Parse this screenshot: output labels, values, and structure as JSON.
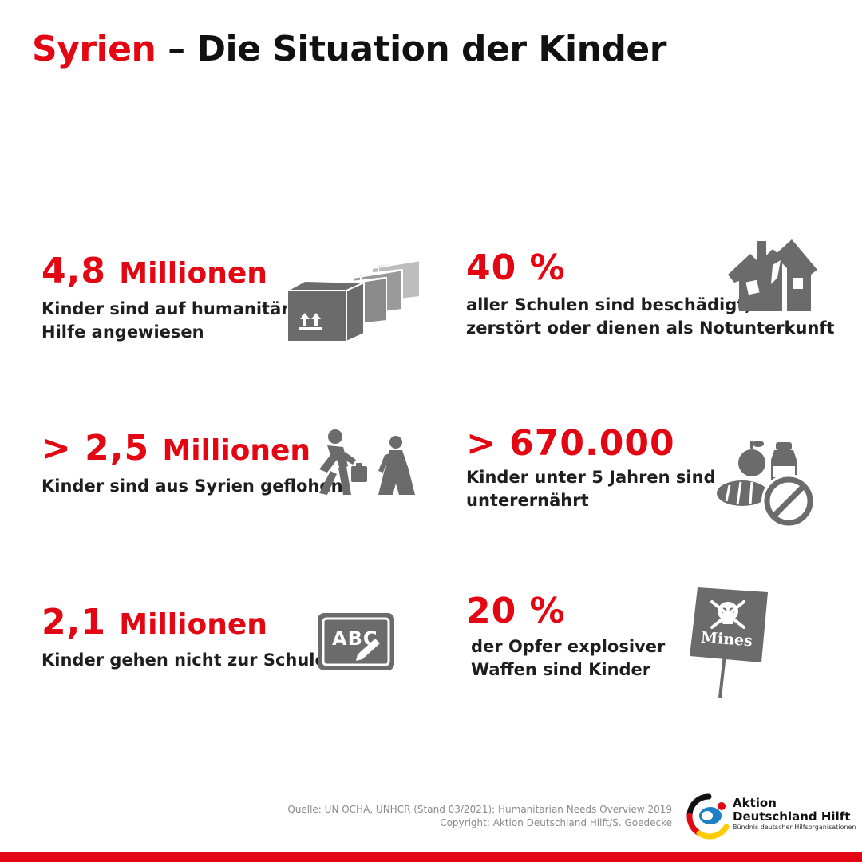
{
  "title": {
    "highlight": "Syrien",
    "rest": " – Die Situation der Kinder"
  },
  "stats": {
    "children_humanitarian": {
      "number": "4,8",
      "unit": "Millionen",
      "line1": "Kinder sind auf humanitäre",
      "line2": "Hilfe angewiesen",
      "icon": "aid-boxes-icon"
    },
    "schools": {
      "number": "40 %",
      "line1": "aller Schulen sind beschädigt,",
      "line2": "zerstört oder dienen als Notunterkunft",
      "icon": "damaged-house-icon"
    },
    "refugees": {
      "number": "> 2,5",
      "unit": "Millionen",
      "line1": "Kinder sind aus Syrien geflohen",
      "icon": "fleeing-people-icon"
    },
    "malnourished": {
      "number": "> 670.000",
      "line1": "Kinder unter 5 Jahren sind",
      "line2": "unterernährt",
      "icon": "no-food-icon"
    },
    "no_school": {
      "number": "2,1",
      "unit": "Millionen",
      "line1": "Kinder gehen nicht zur Schule",
      "icon": "chalkboard-abc-icon",
      "board_text": "ABC"
    },
    "explosive_victims": {
      "number": "20 %",
      "line1": "der Opfer explosiver",
      "line2": "Waffen sind Kinder",
      "icon": "landmine-sign-icon",
      "sign_text": "Mines"
    }
  },
  "footer": {
    "source_line1": "Quelle: UN OCHA, UNHCR (Stand 03/2021); Humanitarian Needs Overview 2019",
    "source_line2": "Copyright: Aktion Deutschland Hilft/S. Goedecke"
  },
  "logo": {
    "line1": "Aktion",
    "line2": "Deutschland Hilft",
    "tagline": "Bündnis deutscher Hilfsorganisationen"
  },
  "colors": {
    "accent": "#e30613",
    "icon_gray": "#6b6b6b",
    "text": "#1e1e1e"
  }
}
